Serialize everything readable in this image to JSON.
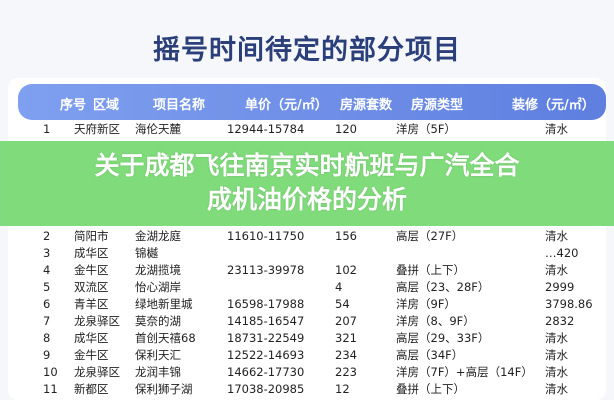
{
  "title": "摇号时间待定的部分项目",
  "headers": [
    "序号",
    "区域",
    "项目名称",
    "单价（元/㎡）",
    "房源套数",
    "房源类型",
    "装修（元/㎡）"
  ],
  "rows": [
    [
      "1",
      "天府新区",
      "海伦天麓",
      "12944-15784",
      "120",
      "洋房（5F）",
      "清水"
    ],
    [
      "2",
      "简阳市",
      "金湖龙庭",
      "11610-11750",
      "156",
      "高层（27F）",
      "清水"
    ],
    [
      "3",
      "成华区",
      "锦樾",
      "",
      "",
      "",
      "…420"
    ],
    [
      "4",
      "金牛区",
      "龙湖揽境",
      "23113-39978",
      "102",
      "叠拼（上下）",
      "清水"
    ],
    [
      "5",
      "双流区",
      "怡心湖岸",
      "",
      "4",
      "高层（23、28F）",
      "2999"
    ],
    [
      "6",
      "青羊区",
      "绿地新里城",
      "16598-17988",
      "54",
      "洋房（9F）",
      "3798.86"
    ],
    [
      "7",
      "龙泉驿区",
      "莫奈的湖",
      "14185-16547",
      "207",
      "洋房（8、9F）",
      "2832"
    ],
    [
      "8",
      "成华区",
      "首创天禧68",
      "18731-22549",
      "321",
      "高层（29、33F）",
      "清水"
    ],
    [
      "9",
      "金牛区",
      "保利天汇",
      "12522-14693",
      "234",
      "高层（34F）",
      "清水"
    ],
    [
      "10",
      "龙泉驿区",
      "龙润丰锦",
      "14662-17730",
      "223",
      "洋房（7F）+高层（14F）",
      "清水"
    ],
    [
      "11",
      "新都区",
      "保利狮子湖",
      "17038-20985",
      "12",
      "叠拼（上下）",
      "清水"
    ]
  ],
  "banner": {
    "line1": "关于成都飞往南京实时航班与广汽全合",
    "line2": "成机油价格的分析"
  }
}
